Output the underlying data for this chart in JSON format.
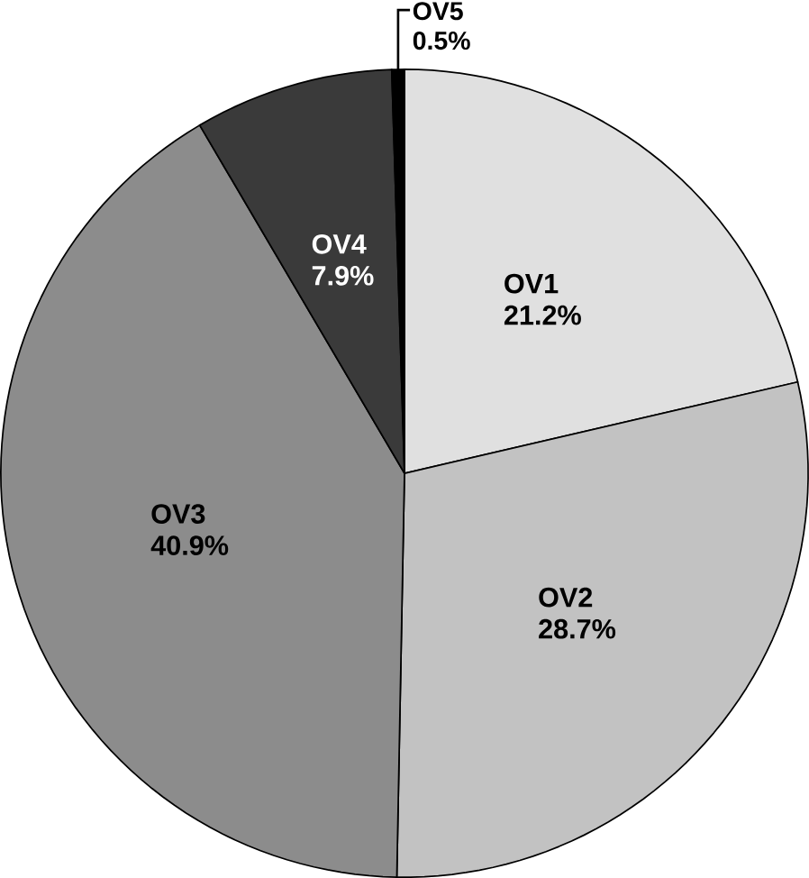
{
  "chart_data": {
    "type": "pie",
    "categories": [
      "OV1",
      "OV2",
      "OV3",
      "OV4",
      "OV5"
    ],
    "values": [
      21.2,
      28.7,
      40.9,
      7.9,
      0.5
    ],
    "value_labels": [
      "21.2%",
      "28.7%",
      "40.9%",
      "7.9%",
      "0.5%"
    ],
    "colors": [
      "#e0e0e0",
      "#c2c2c2",
      "#8c8c8c",
      "#3a3a3a",
      "#000000"
    ]
  }
}
